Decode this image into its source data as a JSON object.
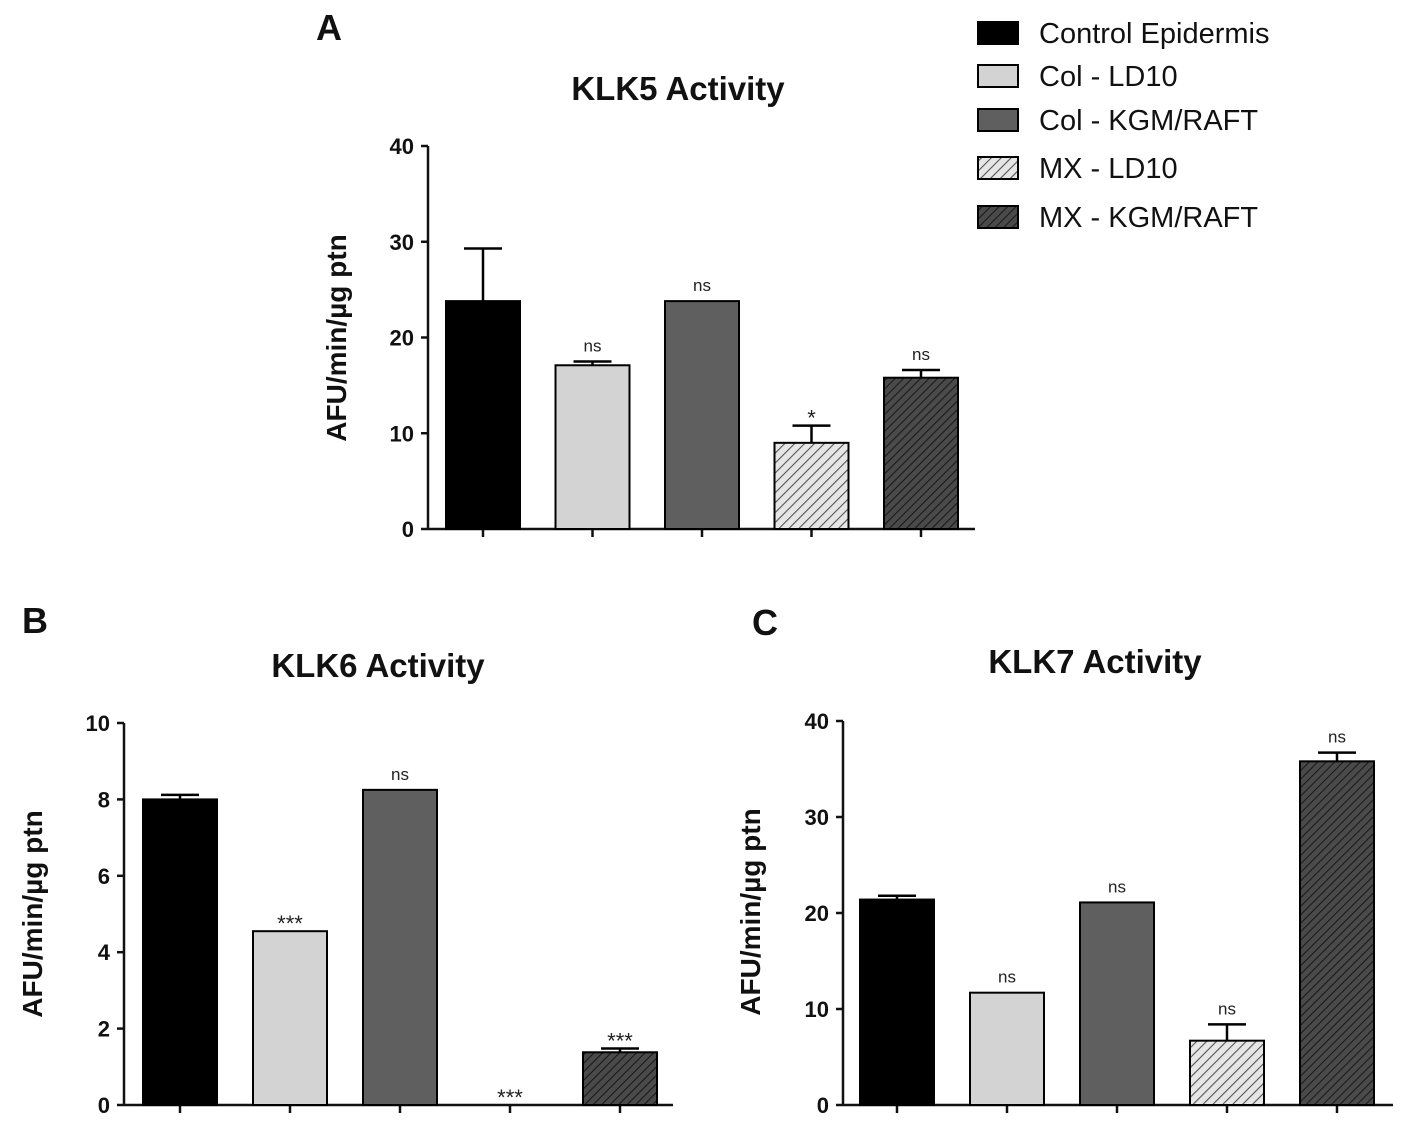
{
  "legend": {
    "entries": [
      {
        "label": "Control Epidermis",
        "fill": "#000000",
        "pattern": "solid"
      },
      {
        "label": "Col - LD10",
        "fill": "#d3d3d3",
        "pattern": "solid"
      },
      {
        "label": "Col - KGM/RAFT",
        "fill": "#5f5f5f",
        "pattern": "solid"
      },
      {
        "label": "MX - LD10",
        "fill": "#e6e6e6",
        "pattern": "hatch-light"
      },
      {
        "label": "MX - KGM/RAFT",
        "fill": "#4a4a4a",
        "pattern": "hatch-dark"
      }
    ]
  },
  "colors": {
    "control": "#000000",
    "col_ld10": "#d3d3d3",
    "col_kgm": "#5f5f5f",
    "mx_ld10_bg": "#e6e6e6",
    "mx_ld10_line": "#555555",
    "mx_kgm_bg": "#4a4a4a",
    "mx_kgm_line": "#1a1a1a",
    "axis": "#111111"
  },
  "chart_data": [
    {
      "panel": "A",
      "type": "bar",
      "title": "KLK5 Activity",
      "xlabel": "",
      "ylabel": "AFU/min/µg ptn",
      "ylim": [
        0,
        40
      ],
      "yticks": [
        0,
        10,
        20,
        30,
        40
      ],
      "grid": false,
      "categories": [
        "Control Epidermis",
        "Col - LD10",
        "Col - KGM/RAFT",
        "MX - LD10",
        "MX - KGM/RAFT"
      ],
      "values": [
        23.8,
        17.1,
        23.8,
        9.0,
        15.8
      ],
      "errors": [
        5.5,
        0.4,
        0.0,
        1.8,
        0.8
      ],
      "annotations": [
        "",
        "ns",
        "ns",
        "*",
        "ns"
      ]
    },
    {
      "panel": "B",
      "type": "bar",
      "title": "KLK6 Activity",
      "xlabel": "",
      "ylabel": "AFU/min/µg ptn",
      "ylim": [
        0,
        10
      ],
      "yticks": [
        0,
        2,
        4,
        6,
        8,
        10
      ],
      "grid": false,
      "categories": [
        "Control Epidermis",
        "Col - LD10",
        "Col - KGM/RAFT",
        "MX - LD10",
        "MX - KGM/RAFT"
      ],
      "values": [
        8.0,
        4.55,
        8.25,
        0.0,
        1.38
      ],
      "errors": [
        0.12,
        0.0,
        0.0,
        0.0,
        0.1
      ],
      "annotations": [
        "",
        "***",
        "ns",
        "***",
        "***"
      ]
    },
    {
      "panel": "C",
      "type": "bar",
      "title": "KLK7 Activity",
      "xlabel": "",
      "ylabel": "AFU/min/µg ptn",
      "ylim": [
        0,
        40
      ],
      "yticks": [
        0,
        10,
        20,
        30,
        40
      ],
      "grid": false,
      "categories": [
        "Control Epidermis",
        "Col - LD10",
        "Col - KGM/RAFT",
        "MX - LD10",
        "MX - KGM/RAFT"
      ],
      "values": [
        21.4,
        11.7,
        21.1,
        6.7,
        35.8
      ],
      "errors": [
        0.4,
        0.0,
        0.0,
        1.7,
        0.9
      ],
      "annotations": [
        "",
        "ns",
        "ns",
        "ns",
        "ns"
      ]
    }
  ]
}
